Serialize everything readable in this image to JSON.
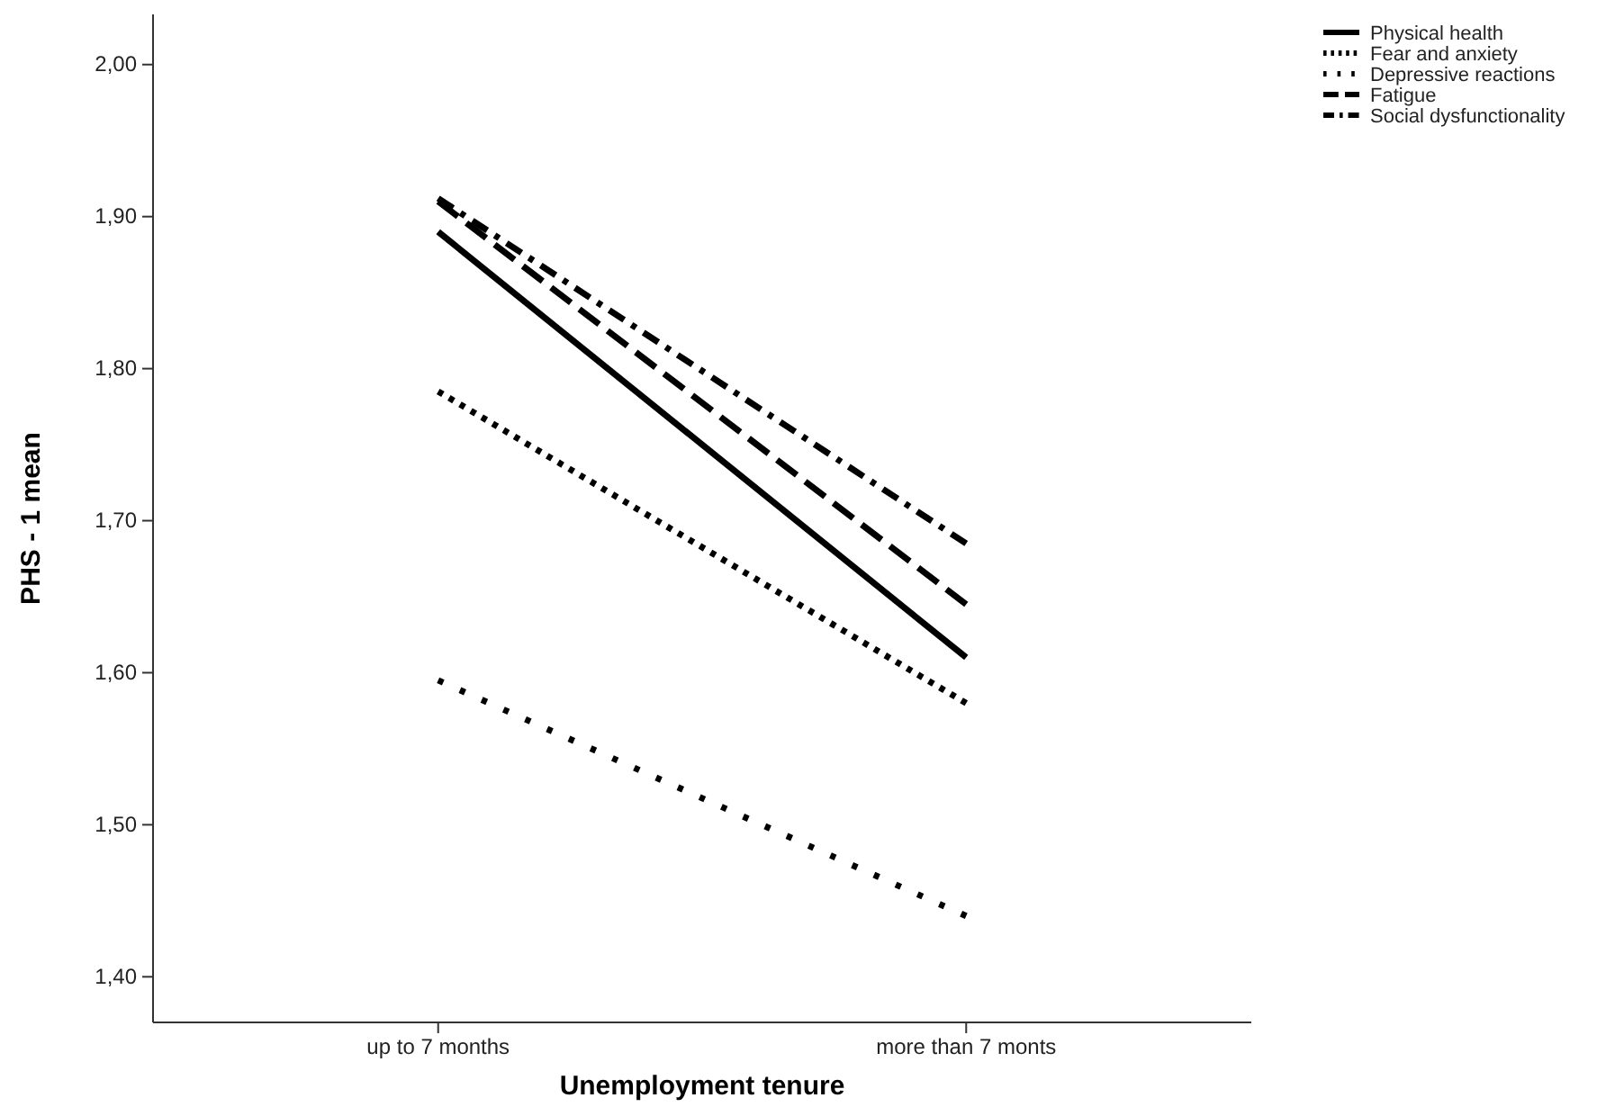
{
  "chart_data": {
    "type": "line",
    "xlabel": "Unemployment tenure",
    "ylabel": "PHS - 1 mean",
    "categories": [
      "up to 7 months",
      "more than 7 monts"
    ],
    "series": [
      {
        "name": "Physical health",
        "color": "#000000",
        "line_style": "solid",
        "values": [
          1.89,
          1.61
        ]
      },
      {
        "name": "Fear and anxiety",
        "color": "#000000",
        "line_style": "dotted",
        "values": [
          1.785,
          1.58
        ]
      },
      {
        "name": "Depressive reactions",
        "color": "#000000",
        "line_style": "dotted",
        "values": [
          1.595,
          1.44
        ]
      },
      {
        "name": "Fatigue",
        "color": "#000000",
        "line_style": "dashed",
        "values": [
          1.91,
          1.645
        ]
      },
      {
        "name": "Social dysfunctionality",
        "color": "#000000",
        "line_style": "dashed",
        "values": [
          1.912,
          1.685
        ]
      }
    ],
    "ylim": [
      1.37,
      2.033
    ],
    "yticks": [
      {
        "value": 1.4,
        "label": "1,40"
      },
      {
        "value": 1.5,
        "label": "1,50"
      },
      {
        "value": 1.6,
        "label": "1,60"
      },
      {
        "value": 1.7,
        "label": "1,70"
      },
      {
        "value": 1.8,
        "label": "1,80"
      },
      {
        "value": 1.9,
        "label": "1,90"
      },
      {
        "value": 2.0,
        "label": "2,00"
      }
    ],
    "grid": false,
    "legend": "top right",
    "marker": "none"
  }
}
